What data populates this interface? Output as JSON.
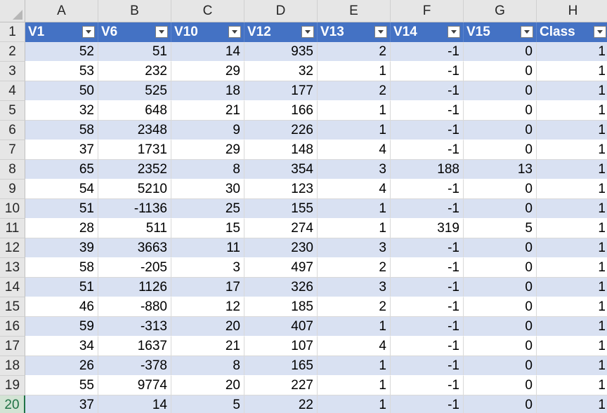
{
  "sheet": {
    "columns": [
      "A",
      "B",
      "C",
      "D",
      "E",
      "F",
      "G",
      "H"
    ],
    "active_row": "20",
    "header_row": {
      "row_number": "1",
      "fields": [
        "V1",
        "V6",
        "V10",
        "V12",
        "V13",
        "V14",
        "V15",
        "Class"
      ]
    },
    "rows": [
      {
        "num": "2",
        "cells": [
          "52",
          "51",
          "14",
          "935",
          "2",
          "-1",
          "0",
          "1"
        ]
      },
      {
        "num": "3",
        "cells": [
          "53",
          "232",
          "29",
          "32",
          "1",
          "-1",
          "0",
          "1"
        ]
      },
      {
        "num": "4",
        "cells": [
          "50",
          "525",
          "18",
          "177",
          "2",
          "-1",
          "0",
          "1"
        ]
      },
      {
        "num": "5",
        "cells": [
          "32",
          "648",
          "21",
          "166",
          "1",
          "-1",
          "0",
          "1"
        ]
      },
      {
        "num": "6",
        "cells": [
          "58",
          "2348",
          "9",
          "226",
          "1",
          "-1",
          "0",
          "1"
        ]
      },
      {
        "num": "7",
        "cells": [
          "37",
          "1731",
          "29",
          "148",
          "4",
          "-1",
          "0",
          "1"
        ]
      },
      {
        "num": "8",
        "cells": [
          "65",
          "2352",
          "8",
          "354",
          "3",
          "188",
          "13",
          "1"
        ]
      },
      {
        "num": "9",
        "cells": [
          "54",
          "5210",
          "30",
          "123",
          "4",
          "-1",
          "0",
          "1"
        ]
      },
      {
        "num": "10",
        "cells": [
          "51",
          "-1136",
          "25",
          "155",
          "1",
          "-1",
          "0",
          "1"
        ]
      },
      {
        "num": "11",
        "cells": [
          "28",
          "511",
          "15",
          "274",
          "1",
          "319",
          "5",
          "1"
        ]
      },
      {
        "num": "12",
        "cells": [
          "39",
          "3663",
          "11",
          "230",
          "3",
          "-1",
          "0",
          "1"
        ]
      },
      {
        "num": "13",
        "cells": [
          "58",
          "-205",
          "3",
          "497",
          "2",
          "-1",
          "0",
          "1"
        ]
      },
      {
        "num": "14",
        "cells": [
          "51",
          "1126",
          "17",
          "326",
          "3",
          "-1",
          "0",
          "1"
        ]
      },
      {
        "num": "15",
        "cells": [
          "46",
          "-880",
          "12",
          "185",
          "2",
          "-1",
          "0",
          "1"
        ]
      },
      {
        "num": "16",
        "cells": [
          "59",
          "-313",
          "20",
          "407",
          "1",
          "-1",
          "0",
          "1"
        ]
      },
      {
        "num": "17",
        "cells": [
          "34",
          "1637",
          "21",
          "107",
          "4",
          "-1",
          "0",
          "1"
        ]
      },
      {
        "num": "18",
        "cells": [
          "26",
          "-378",
          "8",
          "165",
          "1",
          "-1",
          "0",
          "1"
        ]
      },
      {
        "num": "19",
        "cells": [
          "55",
          "9774",
          "20",
          "227",
          "1",
          "-1",
          "0",
          "1"
        ]
      },
      {
        "num": "20",
        "cells": [
          "37",
          "14",
          "5",
          "22",
          "1",
          "-1",
          "0",
          "1"
        ]
      }
    ],
    "colors": {
      "header_fill": "#4472c4",
      "band_fill": "#d9e1f2",
      "active_row_header": "#217346"
    }
  }
}
